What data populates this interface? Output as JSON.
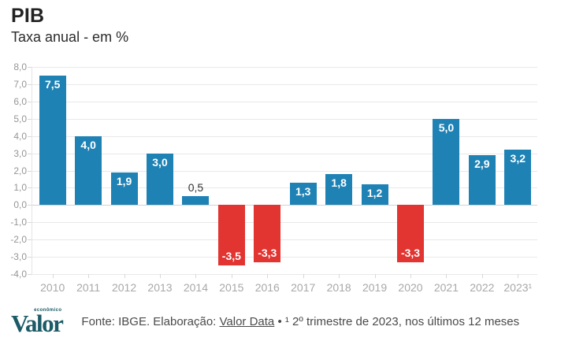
{
  "chart_data": {
    "type": "bar",
    "title": "PIB",
    "subtitle": "Taxa anual - em %",
    "categories": [
      "2010",
      "2011",
      "2012",
      "2013",
      "2014",
      "2015",
      "2016",
      "2017",
      "2018",
      "2019",
      "2020",
      "2021",
      "2022",
      "2023¹"
    ],
    "values": [
      7.5,
      4.0,
      1.9,
      3.0,
      0.5,
      -3.5,
      -3.3,
      1.3,
      1.8,
      1.2,
      -3.3,
      5.0,
      2.9,
      3.2
    ],
    "value_labels": [
      "7,5",
      "4,0",
      "1,9",
      "3,0",
      "0,5",
      "-3,5",
      "-3,3",
      "1,3",
      "1,8",
      "1,2",
      "-3,3",
      "5,0",
      "2,9",
      "3,2"
    ],
    "ylim": [
      -4,
      8
    ],
    "yticks": [
      {
        "v": 8,
        "label": "8,0"
      },
      {
        "v": 7,
        "label": "7,0"
      },
      {
        "v": 6,
        "label": "6,0"
      },
      {
        "v": 5,
        "label": "5,0"
      },
      {
        "v": 4,
        "label": "4,0"
      },
      {
        "v": 3,
        "label": "3,0"
      },
      {
        "v": 2,
        "label": "2,0"
      },
      {
        "v": 1,
        "label": "1,0"
      },
      {
        "v": 0,
        "label": "0,0"
      },
      {
        "v": -1,
        "label": "-1,0"
      },
      {
        "v": -2,
        "label": "-2,0"
      },
      {
        "v": -3,
        "label": "-3,0"
      },
      {
        "v": -4,
        "label": "-4,0"
      }
    ],
    "grid": "horizontal",
    "legend": false,
    "xlabel": "",
    "ylabel": "",
    "colors": {
      "positive": "#1f82b5",
      "negative": "#e23431",
      "grid": "#e8e8e8",
      "zero_line": "#d2d2d2",
      "axis_text": "#a8a8a8",
      "value_inside": "#ffffff",
      "value_outside": "#333333"
    }
  },
  "footer": {
    "logo_text": "Valor",
    "logo_sub": "econômico",
    "source_prefix": "Fonte: IBGE. Elaboração: ",
    "source_link": "Valor Data",
    "source_suffix": " • ¹ 2º trimestre de 2023, nos últimos 12 meses"
  }
}
